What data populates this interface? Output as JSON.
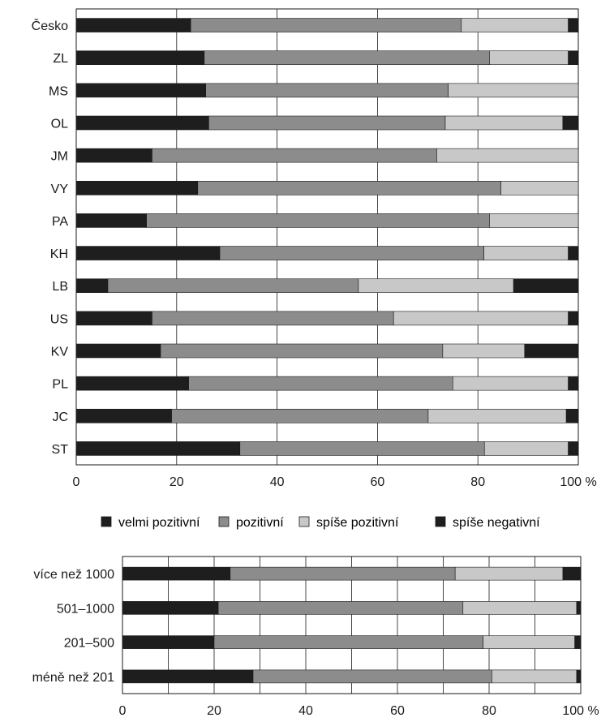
{
  "colors": {
    "velmi_pozitivni": "#1e1e1e",
    "pozitivni": "#8c8c8c",
    "spise_pozitivni": "#c8c8c8",
    "spise_negativni": "#1e1e1e",
    "grid": "#1a1a1a",
    "bar_outline": "#1a1a1a"
  },
  "legend": {
    "items": [
      {
        "label": "velmi pozitivní",
        "color_key": "velmi_pozitivni"
      },
      {
        "label": "pozitivní",
        "color_key": "pozitivni"
      },
      {
        "label": "spíše pozitivní",
        "color_key": "spise_pozitivni"
      },
      {
        "label": "spíše negativní",
        "color_key": "spise_negativni"
      }
    ]
  },
  "chart_data": [
    {
      "type": "bar",
      "orientation": "horizontal",
      "stacked": true,
      "categories": [
        "Česko",
        "ZL",
        "MS",
        "OL",
        "JM",
        "VY",
        "PA",
        "KH",
        "LB",
        "US",
        "KV",
        "PL",
        "JC",
        "ST"
      ],
      "series": [
        {
          "name": "velmi pozitivní",
          "values": [
            22.8,
            25.5,
            25.8,
            26.4,
            15.1,
            24.2,
            14.0,
            28.6,
            6.3,
            15.1,
            16.8,
            22.4,
            19.0,
            32.6
          ]
        },
        {
          "name": "pozitivní",
          "values": [
            53.9,
            56.8,
            48.3,
            47.1,
            56.7,
            60.4,
            68.3,
            52.6,
            49.9,
            48.1,
            56.2,
            52.6,
            51.1,
            48.7
          ]
        },
        {
          "name": "spíše pozitivní",
          "values": [
            21.3,
            15.7,
            25.9,
            23.4,
            28.2,
            15.4,
            17.7,
            16.8,
            30.9,
            34.8,
            16.3,
            23.0,
            27.5,
            16.7
          ]
        },
        {
          "name": "spíše negativní",
          "values": [
            2.0,
            2.0,
            0.0,
            3.1,
            0.0,
            0.0,
            0.0,
            2.0,
            12.9,
            2.0,
            10.7,
            2.0,
            2.4,
            2.0
          ]
        }
      ],
      "x_ticks": [
        "0",
        "20",
        "40",
        "60",
        "80",
        "100 %"
      ],
      "xlim": [
        0,
        100
      ],
      "grid": true
    },
    {
      "type": "bar",
      "orientation": "horizontal",
      "stacked": true,
      "categories": [
        "více než 1000",
        "501–1000",
        "201–500",
        "méně než 201"
      ],
      "series": [
        {
          "name": "velmi pozitivní",
          "values": [
            23.5,
            20.9,
            20.0,
            28.5
          ]
        },
        {
          "name": "pozitivní",
          "values": [
            49.1,
            53.4,
            58.7,
            52.1
          ]
        },
        {
          "name": "spíše pozitivní",
          "values": [
            23.5,
            24.8,
            20.0,
            18.5
          ]
        },
        {
          "name": "spíše negativní",
          "values": [
            3.9,
            0.9,
            1.3,
            0.9
          ]
        }
      ],
      "x_ticks": [
        "0",
        "20",
        "40",
        "60",
        "80",
        "100 %"
      ],
      "xlim": [
        0,
        100
      ],
      "grid": true
    }
  ]
}
